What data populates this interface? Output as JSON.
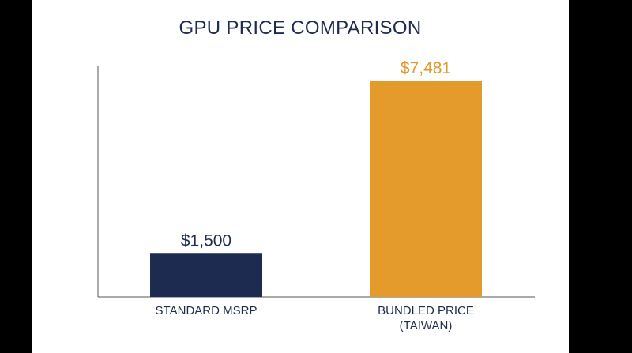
{
  "chart_data": {
    "type": "bar",
    "title": "GPU PRICE COMPARISON",
    "categories": [
      "STANDARD MSRP",
      "BUNDLED PRICE\n(TAIWAN)"
    ],
    "values": [
      1500,
      7481
    ],
    "data_labels": [
      "$1,500",
      "$7,481"
    ],
    "colors": [
      "#1c2b4f",
      "#e49b2b"
    ],
    "label_colors": [
      "#1e2b4e",
      "#e2992b"
    ],
    "ylim": [
      0,
      8000
    ],
    "grid": false,
    "legend": "none"
  }
}
